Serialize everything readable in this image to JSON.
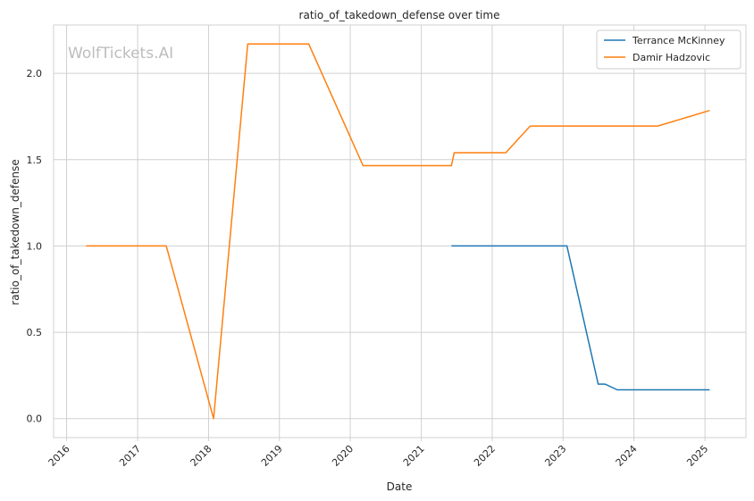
{
  "chart_data": {
    "type": "line",
    "title": "ratio_of_takedown_defense over time",
    "xlabel": "Date",
    "ylabel": "ratio_of_takedown_defense",
    "x_ticks": [
      "2016",
      "2017",
      "2018",
      "2019",
      "2020",
      "2021",
      "2022",
      "2023",
      "2024",
      "2025"
    ],
    "y_ticks": [
      "0.0",
      "0.5",
      "1.0",
      "1.5",
      "2.0"
    ],
    "xlim": [
      "2015-10-26",
      "2025-07-31"
    ],
    "ylim": [
      -0.11,
      2.28
    ],
    "grid": true,
    "legend_position": "top-right",
    "watermark": "WolfTickets.AI",
    "series": [
      {
        "name": "Terrance McKinney",
        "color": "#1f77b4",
        "points": [
          [
            "2021-06-05",
            1.0
          ],
          [
            "2023-01-21",
            1.0
          ],
          [
            "2023-07-01",
            0.2
          ],
          [
            "2023-08-05",
            0.2
          ],
          [
            "2023-10-07",
            0.167
          ],
          [
            "2025-01-25",
            0.167
          ]
        ]
      },
      {
        "name": "Damir Hadzovic",
        "color": "#ff7f0e",
        "points": [
          [
            "2016-04-10",
            1.0
          ],
          [
            "2017-05-28",
            1.0
          ],
          [
            "2018-01-27",
            0.0
          ],
          [
            "2018-07-22",
            2.17
          ],
          [
            "2019-06-01",
            2.17
          ],
          [
            "2020-03-07",
            1.465
          ],
          [
            "2021-06-05",
            1.465
          ],
          [
            "2021-06-19",
            1.54
          ],
          [
            "2022-03-12",
            1.54
          ],
          [
            "2022-07-16",
            1.695
          ],
          [
            "2024-05-04",
            1.695
          ],
          [
            "2025-01-25",
            1.785
          ]
        ]
      }
    ]
  }
}
